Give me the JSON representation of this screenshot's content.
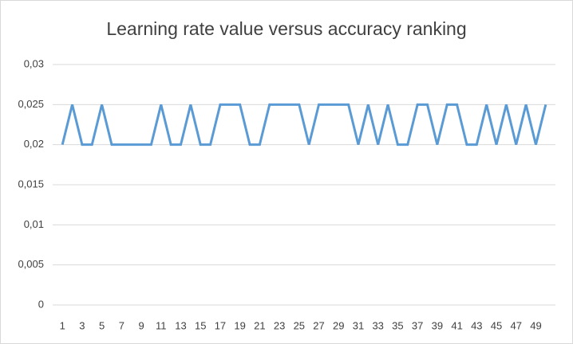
{
  "chart_data": {
    "type": "line",
    "title": "Learning rate value versus accuracy ranking",
    "categories": [
      "1",
      null,
      "3",
      null,
      "5",
      null,
      "7",
      null,
      "9",
      null,
      "11",
      null,
      "13",
      null,
      "15",
      null,
      "17",
      null,
      "19",
      null,
      "21",
      null,
      "23",
      null,
      "25",
      null,
      "27",
      null,
      "29",
      null,
      "31",
      null,
      "33",
      null,
      "35",
      null,
      "37",
      null,
      "39",
      null,
      "41",
      null,
      "43",
      null,
      "45",
      null,
      "47",
      null,
      "49",
      null
    ],
    "series": [
      {
        "name": "Learning rate",
        "color": "#5b9bd5",
        "values": [
          0.02,
          0.025,
          0.02,
          0.02,
          0.025,
          0.02,
          0.02,
          0.02,
          0.02,
          0.02,
          0.025,
          0.02,
          0.02,
          0.025,
          0.02,
          0.02,
          0.025,
          0.025,
          0.025,
          0.02,
          0.02,
          0.025,
          0.025,
          0.025,
          0.025,
          0.02,
          0.025,
          0.025,
          0.025,
          0.025,
          0.02,
          0.025,
          0.02,
          0.025,
          0.02,
          0.02,
          0.025,
          0.025,
          0.02,
          0.025,
          0.025,
          0.02,
          0.02,
          0.025,
          0.02,
          0.025,
          0.02,
          0.025,
          0.02,
          0.025
        ]
      }
    ],
    "ylim": [
      0,
      0.03
    ],
    "yticks": [
      0,
      {
        "value": 0.005,
        "label": "0,005"
      },
      {
        "value": 0.01,
        "label": "0,01"
      },
      {
        "value": 0.015,
        "label": "0,015"
      },
      {
        "value": 0.02,
        "label": "0,02"
      },
      {
        "value": 0.025,
        "label": "0,025"
      },
      {
        "value": 0.03,
        "label": "0,03"
      }
    ],
    "grid": true
  }
}
